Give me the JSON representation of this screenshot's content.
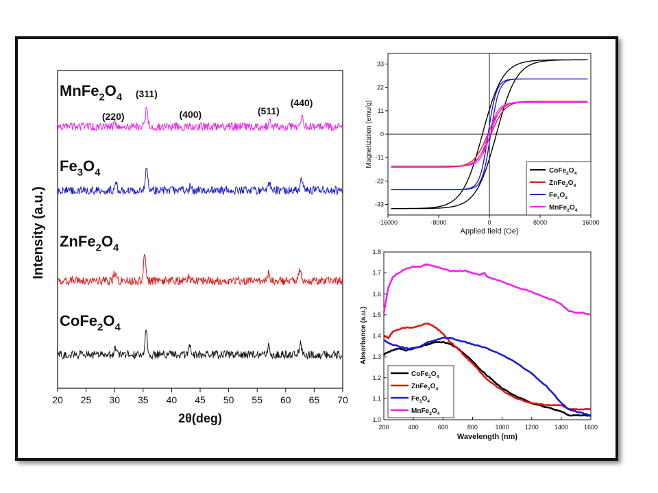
{
  "chart_data": [
    {
      "type": "line",
      "xlabel": "2θ(deg)",
      "ylabel": "Intensity (a.u.)",
      "xlim": [
        20,
        70
      ],
      "xticks": [
        20,
        25,
        30,
        35,
        40,
        45,
        50,
        55,
        60,
        65,
        70
      ],
      "series": [
        {
          "name": "MnFe2O4",
          "label_main": "MnFe",
          "label_sub1": "2",
          "label_mid": "O",
          "label_sub2": "4",
          "color": "#ee22ee",
          "baseline": 185,
          "peaks": [
            [
              30.1,
              6
            ],
            [
              35.6,
              26
            ],
            [
              43.2,
              4
            ],
            [
              57.2,
              8
            ],
            [
              62.8,
              14
            ]
          ]
        },
        {
          "name": "Fe3O4",
          "label_main": "Fe",
          "label_sub1": "3",
          "label_mid": "O",
          "label_sub2": "4",
          "color": "#1a1ad6",
          "baseline": 278,
          "peaks": [
            [
              30.2,
              12
            ],
            [
              35.6,
              36
            ],
            [
              43.3,
              6
            ],
            [
              57.1,
              10
            ],
            [
              62.8,
              16
            ]
          ]
        },
        {
          "name": "ZnFe2O4",
          "label_main": "ZnFe",
          "label_sub1": "2",
          "label_mid": "O",
          "label_sub2": "4",
          "color": "#e01616",
          "baseline": 410,
          "peaks": [
            [
              30.0,
              12
            ],
            [
              35.3,
              40
            ],
            [
              43.0,
              6
            ],
            [
              57.0,
              12
            ],
            [
              62.5,
              18
            ]
          ]
        },
        {
          "name": "CoFe2O4",
          "label_main": "CoFe",
          "label_sub1": "2",
          "label_mid": "O",
          "label_sub2": "4",
          "color": "#111111",
          "baseline": 518,
          "peaks": [
            [
              30.1,
              10
            ],
            [
              35.5,
              34
            ],
            [
              43.2,
              12
            ],
            [
              57.0,
              12
            ],
            [
              62.6,
              16
            ]
          ]
        }
      ],
      "annotations": [
        {
          "text": "(220)",
          "x": 30.0
        },
        {
          "text": "(311)",
          "x": 35.6
        },
        {
          "text": "(400)",
          "x": 43.3
        },
        {
          "text": "(511)",
          "x": 57.0
        },
        {
          "text": "(440)",
          "x": 62.8
        }
      ]
    },
    {
      "type": "line",
      "xlabel": "Applied field (Oe)",
      "ylabel": "Magnetization (emu/g)",
      "xlim": [
        -16000,
        16000
      ],
      "ylim": [
        -38,
        38
      ],
      "xticks": [
        -16000,
        -8000,
        0,
        8000,
        16000
      ],
      "yticks": [
        -33,
        -22,
        -11,
        0,
        11,
        22,
        33
      ],
      "legend_position": "bottom-right",
      "series": [
        {
          "name": "CoFe2O4",
          "label_main": "CoFe",
          "label_sub1": "2",
          "label_mid": "O",
          "label_sub2": "4",
          "color": "#000000",
          "ms": 35,
          "hc": 1100,
          "w": 3200
        },
        {
          "name": "ZnFe2O4",
          "label_main": "ZnFe",
          "label_sub1": "2",
          "label_mid": "O",
          "label_sub2": "4",
          "color": "#e01616",
          "ms": 15.5,
          "hc": 250,
          "w": 2200
        },
        {
          "name": "Fe3O4",
          "label_main": "Fe",
          "label_sub1": "3",
          "label_mid": "O",
          "label_sub2": "4",
          "color": "#1a1ad6",
          "ms": 26,
          "hc": 200,
          "w": 1300
        },
        {
          "name": "MnFe2O4",
          "label_main": "MnFe",
          "label_sub1": "2",
          "label_mid": "O",
          "label_sub2": "4",
          "color": "#ee22ee",
          "ms": 15,
          "hc": 150,
          "w": 1600
        }
      ]
    },
    {
      "type": "line",
      "xlabel": "Wavelength (nm)",
      "ylabel": "Absorbance (a.u.)",
      "xlim": [
        200,
        1600
      ],
      "ylim": [
        1.0,
        1.8
      ],
      "xticks": [
        200,
        400,
        600,
        800,
        1000,
        1200,
        1400,
        1600
      ],
      "yticks": [
        1.0,
        1.1,
        1.2,
        1.3,
        1.4,
        1.5,
        1.6,
        1.7,
        1.8
      ],
      "legend_position": "bottom-left",
      "series": [
        {
          "name": "CoFe2O4",
          "label_main": "CoFe",
          "label_sub1": "2",
          "label_mid": "O",
          "label_sub2": "4",
          "color": "#000000",
          "x": [
            200,
            250,
            300,
            350,
            400,
            450,
            500,
            550,
            600,
            650,
            700,
            750,
            800,
            850,
            900,
            950,
            1000,
            1100,
            1200,
            1300,
            1400,
            1450,
            1500,
            1550,
            1600
          ],
          "y": [
            1.31,
            1.33,
            1.34,
            1.33,
            1.34,
            1.35,
            1.36,
            1.37,
            1.37,
            1.36,
            1.34,
            1.31,
            1.28,
            1.24,
            1.21,
            1.18,
            1.15,
            1.11,
            1.08,
            1.06,
            1.04,
            1.02,
            1.02,
            1.02,
            1.02
          ]
        },
        {
          "name": "ZnFe2O4",
          "label_main": "ZnFe",
          "label_sub1": "2",
          "label_mid": "O",
          "label_sub2": "4",
          "color": "#e01616",
          "x": [
            200,
            230,
            260,
            300,
            350,
            400,
            450,
            500,
            550,
            600,
            650,
            700,
            750,
            800,
            850,
            900,
            1000,
            1100,
            1200,
            1300,
            1400,
            1450,
            1500,
            1600
          ],
          "y": [
            1.4,
            1.39,
            1.42,
            1.43,
            1.44,
            1.44,
            1.45,
            1.46,
            1.44,
            1.41,
            1.37,
            1.34,
            1.3,
            1.27,
            1.23,
            1.19,
            1.14,
            1.1,
            1.08,
            1.07,
            1.07,
            1.05,
            1.05,
            1.05
          ]
        },
        {
          "name": "Fe3O4",
          "label_main": "Fe",
          "label_sub1": "3",
          "label_mid": "O",
          "label_sub2": "4",
          "color": "#1a1ad6",
          "x": [
            200,
            250,
            300,
            350,
            400,
            450,
            500,
            550,
            600,
            650,
            700,
            750,
            800,
            900,
            1000,
            1100,
            1200,
            1300,
            1350,
            1400,
            1450,
            1500,
            1550,
            1600
          ],
          "y": [
            1.38,
            1.36,
            1.35,
            1.34,
            1.34,
            1.35,
            1.37,
            1.38,
            1.39,
            1.39,
            1.38,
            1.37,
            1.36,
            1.34,
            1.31,
            1.27,
            1.22,
            1.16,
            1.12,
            1.08,
            1.05,
            1.04,
            1.03,
            1.02
          ]
        },
        {
          "name": "MnFe2O4",
          "label_main": "MnFe",
          "label_sub1": "2",
          "label_mid": "O",
          "label_sub2": "4",
          "color": "#ee22ee",
          "x": [
            200,
            230,
            260,
            300,
            350,
            400,
            450,
            480,
            500,
            550,
            600,
            650,
            700,
            750,
            800,
            850,
            880,
            900,
            1000,
            1100,
            1200,
            1300,
            1350,
            1400,
            1450,
            1500,
            1550,
            1600
          ],
          "y": [
            1.51,
            1.63,
            1.68,
            1.7,
            1.72,
            1.73,
            1.73,
            1.74,
            1.74,
            1.73,
            1.72,
            1.71,
            1.71,
            1.71,
            1.7,
            1.69,
            1.7,
            1.68,
            1.66,
            1.63,
            1.61,
            1.58,
            1.57,
            1.55,
            1.52,
            1.51,
            1.51,
            1.5
          ]
        }
      ]
    }
  ]
}
